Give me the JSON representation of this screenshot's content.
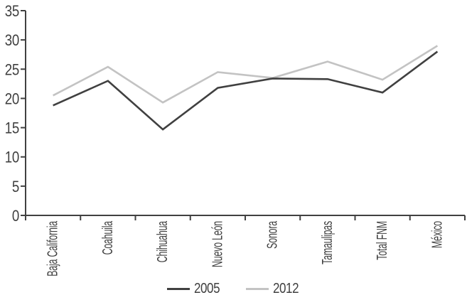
{
  "chart_data": {
    "type": "line",
    "title": "",
    "xlabel": "",
    "ylabel": "",
    "categories": [
      "Baja California",
      "Coahuila",
      "Chihuahua",
      "Nuevo León",
      "Sonora",
      "Tamaulipas",
      "Total FNM",
      "México"
    ],
    "series": [
      {
        "name": "2005",
        "color": "#404040",
        "values": [
          18.8,
          23.0,
          14.7,
          21.8,
          23.4,
          23.3,
          21.0,
          28.0
        ]
      },
      {
        "name": "2012",
        "color": "#c3c3c3",
        "values": [
          20.5,
          25.4,
          19.3,
          24.5,
          23.5,
          26.3,
          23.2,
          29.0
        ]
      }
    ],
    "ylim": [
      0,
      35
    ],
    "yticks": [
      0,
      5,
      10,
      15,
      20,
      25,
      30,
      35
    ],
    "grid": false,
    "legend_position": "bottom-center",
    "axis_color": "#404040",
    "text_color": "#3f3f3f",
    "background": "#ffffff"
  }
}
